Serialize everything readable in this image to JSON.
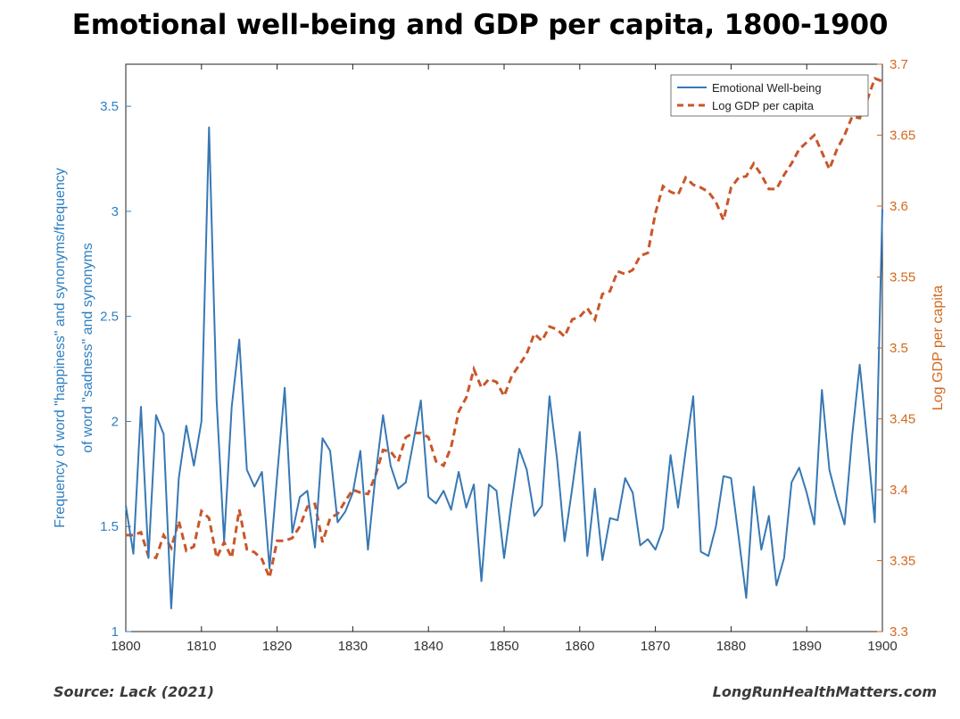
{
  "header": {
    "title": "Emotional well-being and GDP per capita, 1800-1900"
  },
  "footer": {
    "source": "Source: Lack (2021)",
    "site": "LongRunHealthMatters.com"
  },
  "colors": {
    "wellbeing": "#3778b4",
    "gdp": "#c9562a",
    "left_axis": "#2f7fc1",
    "right_axis": "#d2691e"
  },
  "chart_data": {
    "type": "line",
    "title": "Emotional well-being and GDP per capita, 1800-1900",
    "xlabel": "",
    "ylabel_left": "Frequency of word \"happiness\" and synonyms/frequency of word \"sadness\" and synonyms",
    "ylabel_left_lines": [
      "Frequency of word \"happiness\" and synonyms/frequency",
      "of word \"sadness\" and synonyms"
    ],
    "ylabel_right": "Log GDP per capita",
    "xlim": [
      1800,
      1900
    ],
    "ylim_left": [
      1,
      3.7
    ],
    "ylim_right": [
      3.3,
      3.7
    ],
    "x_ticks": [
      "1800",
      "1810",
      "1820",
      "1830",
      "1840",
      "1850",
      "1860",
      "1870",
      "1880",
      "1890",
      "1900"
    ],
    "y_ticks_left": [
      "1",
      "1.5",
      "2",
      "2.5",
      "3",
      "3.5"
    ],
    "y_ticks_right": [
      "3.3",
      "3.35",
      "3.4",
      "3.45",
      "3.5",
      "3.55",
      "3.6",
      "3.65",
      "3.7"
    ],
    "legend_position": "top-right",
    "series": [
      {
        "name": "Emotional Well-being",
        "axis": "left",
        "style": "solid",
        "x": [
          1800,
          1801,
          1802,
          1803,
          1804,
          1805,
          1806,
          1807,
          1808,
          1809,
          1810,
          1811,
          1812,
          1813,
          1814,
          1815,
          1816,
          1817,
          1818,
          1819,
          1820,
          1821,
          1822,
          1823,
          1824,
          1825,
          1826,
          1827,
          1828,
          1829,
          1830,
          1831,
          1832,
          1833,
          1834,
          1835,
          1836,
          1837,
          1838,
          1839,
          1840,
          1841,
          1842,
          1843,
          1844,
          1845,
          1846,
          1847,
          1848,
          1849,
          1850,
          1851,
          1852,
          1853,
          1854,
          1855,
          1856,
          1857,
          1858,
          1859,
          1860,
          1861,
          1862,
          1863,
          1864,
          1865,
          1866,
          1867,
          1868,
          1869,
          1870,
          1871,
          1872,
          1873,
          1874,
          1875,
          1876,
          1877,
          1878,
          1879,
          1880,
          1881,
          1882,
          1883,
          1884,
          1885,
          1886,
          1887,
          1888,
          1889,
          1890,
          1891,
          1892,
          1893,
          1894,
          1895,
          1896,
          1897,
          1898,
          1899,
          1900
        ],
        "values": [
          1.6,
          1.37,
          2.07,
          1.35,
          2.03,
          1.94,
          1.11,
          1.73,
          1.98,
          1.79,
          2.0,
          3.4,
          2.1,
          1.43,
          2.07,
          2.39,
          1.77,
          1.69,
          1.76,
          1.3,
          1.74,
          2.16,
          1.47,
          1.64,
          1.67,
          1.4,
          1.92,
          1.86,
          1.52,
          1.57,
          1.66,
          1.86,
          1.39,
          1.74,
          2.03,
          1.79,
          1.68,
          1.71,
          1.9,
          2.1,
          1.64,
          1.61,
          1.67,
          1.58,
          1.76,
          1.59,
          1.7,
          1.24,
          1.7,
          1.67,
          1.35,
          1.62,
          1.87,
          1.77,
          1.55,
          1.6,
          2.12,
          1.82,
          1.43,
          1.68,
          1.95,
          1.36,
          1.68,
          1.34,
          1.54,
          1.53,
          1.73,
          1.66,
          1.41,
          1.44,
          1.39,
          1.49,
          1.84,
          1.59,
          1.86,
          2.12,
          1.38,
          1.36,
          1.5,
          1.74,
          1.73,
          1.45,
          1.16,
          1.69,
          1.39,
          1.55,
          1.22,
          1.35,
          1.71,
          1.78,
          1.66,
          1.51,
          2.15,
          1.77,
          1.63,
          1.51,
          1.93,
          2.27,
          1.91,
          1.52,
          3.01
        ]
      },
      {
        "name": "Log GDP per capita",
        "axis": "right",
        "style": "dashed",
        "x": [
          1800,
          1801,
          1802,
          1803,
          1804,
          1805,
          1806,
          1807,
          1808,
          1809,
          1810,
          1811,
          1812,
          1813,
          1814,
          1815,
          1816,
          1817,
          1818,
          1819,
          1820,
          1821,
          1822,
          1823,
          1824,
          1825,
          1826,
          1827,
          1828,
          1829,
          1830,
          1831,
          1832,
          1833,
          1834,
          1835,
          1836,
          1837,
          1838,
          1839,
          1840,
          1841,
          1842,
          1843,
          1844,
          1845,
          1846,
          1847,
          1848,
          1849,
          1850,
          1851,
          1852,
          1853,
          1854,
          1855,
          1856,
          1857,
          1858,
          1859,
          1860,
          1861,
          1862,
          1863,
          1864,
          1865,
          1866,
          1867,
          1868,
          1869,
          1870,
          1871,
          1872,
          1873,
          1874,
          1875,
          1876,
          1877,
          1878,
          1879,
          1880,
          1881,
          1882,
          1883,
          1884,
          1885,
          1886,
          1887,
          1888,
          1889,
          1890,
          1891,
          1892,
          1893,
          1894,
          1895,
          1896,
          1897,
          1898,
          1899,
          1900
        ],
        "values": [
          3.368,
          3.368,
          3.37,
          3.353,
          3.352,
          3.368,
          3.359,
          3.378,
          3.357,
          3.36,
          3.385,
          3.38,
          3.352,
          3.363,
          3.352,
          3.386,
          3.358,
          3.356,
          3.351,
          3.338,
          3.364,
          3.364,
          3.366,
          3.374,
          3.388,
          3.39,
          3.363,
          3.38,
          3.383,
          3.392,
          3.4,
          3.398,
          3.397,
          3.41,
          3.428,
          3.427,
          3.42,
          3.437,
          3.44,
          3.44,
          3.437,
          3.42,
          3.417,
          3.43,
          3.455,
          3.465,
          3.485,
          3.472,
          3.478,
          3.476,
          3.466,
          3.48,
          3.488,
          3.496,
          3.51,
          3.505,
          3.515,
          3.513,
          3.508,
          3.52,
          3.522,
          3.528,
          3.52,
          3.538,
          3.54,
          3.554,
          3.552,
          3.555,
          3.565,
          3.567,
          3.595,
          3.614,
          3.61,
          3.608,
          3.62,
          3.615,
          3.613,
          3.61,
          3.603,
          3.59,
          3.613,
          3.62,
          3.621,
          3.63,
          3.622,
          3.612,
          3.612,
          3.622,
          3.63,
          3.64,
          3.645,
          3.65,
          3.638,
          3.626,
          3.64,
          3.65,
          3.663,
          3.662,
          3.675,
          3.69,
          3.688
        ]
      }
    ]
  }
}
